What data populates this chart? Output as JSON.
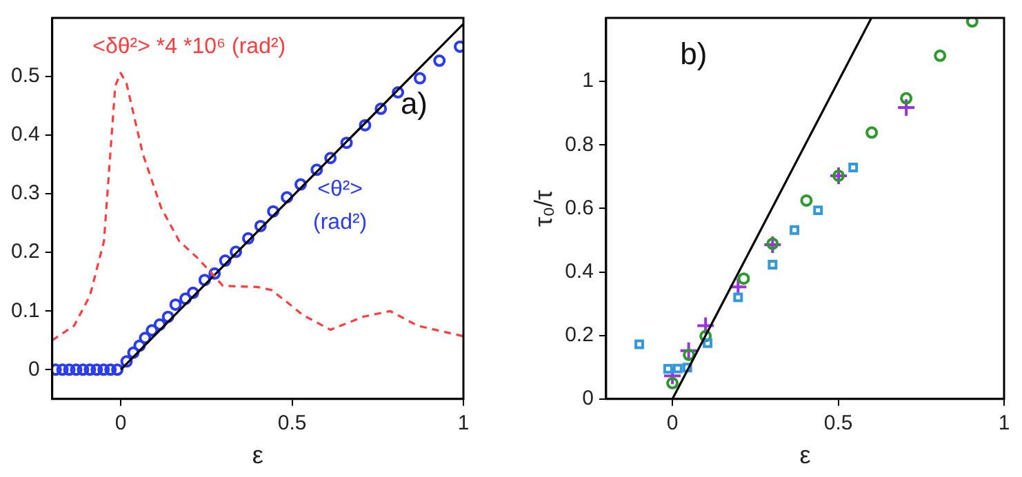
{
  "chart_data": [
    {
      "type": "scatter",
      "xlabel": "ε",
      "xlim": [
        -0.2,
        1
      ],
      "ylim": [
        -0.05,
        0.6
      ],
      "xticks": [
        0,
        0.5,
        1
      ],
      "yticks": [
        0,
        0.1,
        0.2,
        0.3,
        0.4,
        0.5
      ],
      "grid": false,
      "legend": false,
      "annotations": [
        "a)"
      ],
      "series": [
        {
          "type": "line",
          "name": "<δθ²> *4 *10⁶ (rad²)",
          "color": "#ff3b3b",
          "line_style": "dashed",
          "marker": "none",
          "x": [
            -0.2,
            -0.136,
            -0.09,
            -0.049,
            -0.016,
            0,
            0.017,
            0.064,
            0.118,
            0.171,
            0.225,
            0.271,
            0.298,
            0.398,
            0.439,
            0.479,
            0.532,
            0.612,
            0.706,
            0.786,
            0.866,
            1.0
          ],
          "values": [
            0.05,
            0.075,
            0.126,
            0.219,
            0.484,
            0.506,
            0.488,
            0.369,
            0.276,
            0.219,
            0.19,
            0.161,
            0.143,
            0.141,
            0.136,
            0.118,
            0.093,
            0.068,
            0.09,
            0.1,
            0.075,
            0.057
          ]
        },
        {
          "type": "line",
          "color": "#000000",
          "line_style": "solid",
          "marker": "none",
          "x": [
            0,
            1
          ],
          "values": [
            0,
            0.59
          ]
        },
        {
          "name": "<θ²> (rad²)",
          "color": "#2a3cf0",
          "marker": "circle",
          "x": [
            -0.19,
            -0.17,
            -0.15,
            -0.13,
            -0.11,
            -0.09,
            -0.07,
            -0.05,
            -0.03,
            -0.01,
            0.017,
            0.037,
            0.055,
            0.071,
            0.091,
            0.114,
            0.138,
            0.16,
            0.189,
            0.211,
            0.245,
            0.274,
            0.305,
            0.336,
            0.372,
            0.408,
            0.445,
            0.485,
            0.525,
            0.572,
            0.612,
            0.659,
            0.713,
            0.759,
            0.809,
            0.873,
            0.93,
            0.99
          ],
          "values": [
            0,
            0,
            0,
            0,
            0,
            0,
            0,
            0,
            0,
            0,
            0.014,
            0.029,
            0.041,
            0.054,
            0.067,
            0.077,
            0.09,
            0.111,
            0.121,
            0.131,
            0.153,
            0.164,
            0.186,
            0.201,
            0.224,
            0.245,
            0.27,
            0.294,
            0.316,
            0.341,
            0.361,
            0.387,
            0.417,
            0.445,
            0.473,
            0.497,
            0.527,
            0.551
          ]
        }
      ]
    },
    {
      "type": "scatter",
      "xlabel": "ε",
      "ylabel": "τ₀/τ",
      "xlim": [
        -0.2,
        1
      ],
      "ylim": [
        0,
        1.2
      ],
      "xticks": [
        0,
        0.5,
        1
      ],
      "yticks": [
        0,
        0.2,
        0.4,
        0.6,
        0.8,
        1
      ],
      "grid": false,
      "legend": false,
      "annotations": [
        "b)"
      ],
      "series": [
        {
          "type": "line",
          "color": "#000000",
          "line_style": "solid",
          "marker": "none",
          "x": [
            0,
            0.6
          ],
          "values": [
            0,
            1.2
          ]
        },
        {
          "color": "#3399dd",
          "marker": "square",
          "x": [
            -0.1,
            -0.013,
            0.016,
            0.045,
            0.106,
            0.198,
            0.302,
            0.368,
            0.439,
            0.545
          ],
          "values": [
            0.172,
            0.095,
            0.096,
            0.099,
            0.176,
            0.32,
            0.423,
            0.532,
            0.594,
            0.729
          ]
        },
        {
          "color": "#2a9a2a",
          "marker": "circle",
          "x": [
            0,
            0.05,
            0.1,
            0.215,
            0.302,
            0.404,
            0.501,
            0.601,
            0.705,
            0.807,
            0.904
          ],
          "values": [
            0.05,
            0.139,
            0.198,
            0.379,
            0.489,
            0.625,
            0.703,
            0.839,
            0.947,
            1.081,
            1.189
          ]
        },
        {
          "color": "#9933dd",
          "marker": "cross",
          "x": [
            0,
            0.049,
            0.1,
            0.198,
            0.302,
            0.501,
            0.705
          ],
          "values": [
            0.073,
            0.152,
            0.231,
            0.353,
            0.486,
            0.703,
            0.918
          ]
        }
      ]
    }
  ]
}
